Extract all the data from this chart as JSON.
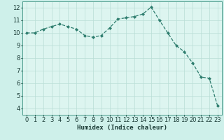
{
  "x": [
    0,
    1,
    2,
    3,
    4,
    5,
    6,
    7,
    8,
    9,
    10,
    11,
    12,
    13,
    14,
    15,
    16,
    17,
    18,
    19,
    20,
    21,
    22,
    23
  ],
  "y": [
    10.0,
    10.0,
    10.3,
    10.5,
    10.7,
    10.5,
    10.3,
    9.8,
    9.65,
    9.8,
    10.4,
    11.1,
    11.2,
    11.3,
    11.5,
    12.05,
    11.0,
    10.0,
    9.0,
    8.5,
    7.6,
    6.5,
    6.4,
    4.2
  ],
  "xlabel": "Humidex (Indice chaleur)",
  "xlim": [
    -0.5,
    23.5
  ],
  "ylim": [
    3.5,
    12.5
  ],
  "yticks": [
    4,
    5,
    6,
    7,
    8,
    9,
    10,
    11,
    12
  ],
  "xticks": [
    0,
    1,
    2,
    3,
    4,
    5,
    6,
    7,
    8,
    9,
    10,
    11,
    12,
    13,
    14,
    15,
    16,
    17,
    18,
    19,
    20,
    21,
    22,
    23
  ],
  "line_color": "#2e7d6e",
  "marker": "D",
  "marker_size": 2,
  "bg_color": "#cef0ea",
  "grid_color": "#b8ddd6",
  "axis_bg": "#ddf5f0",
  "xlabel_fontsize": 6.5,
  "tick_fontsize": 6.0
}
